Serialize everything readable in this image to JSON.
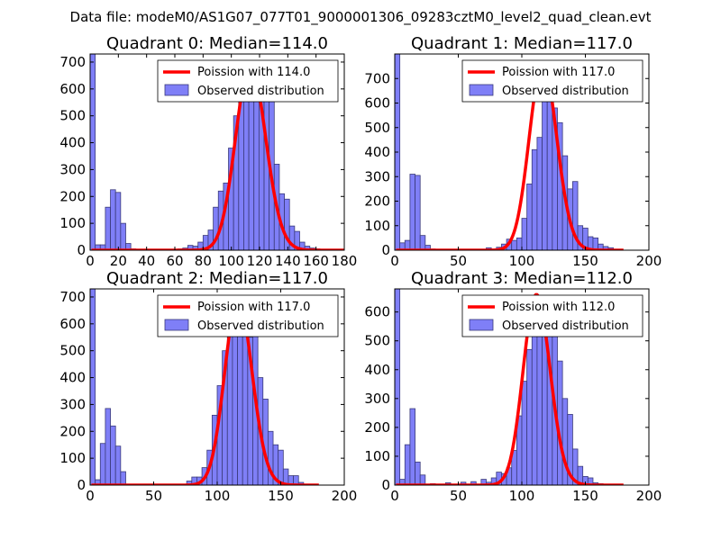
{
  "figure": {
    "suptitle": "Data file: modeM0/AS1G07_077T01_9000001306_09283cztM0_level2_quad_clean.evt"
  },
  "colors": {
    "bar_fill": "#7f7ff7",
    "bar_edge": "#3a3a7a",
    "curve": "#ff0000"
  },
  "chart_data": [
    {
      "type": "bar",
      "title": "Quadrant 0: Median=114.0",
      "xlim": [
        0,
        180
      ],
      "ylim": [
        0,
        730
      ],
      "xticks": [
        0,
        20,
        40,
        60,
        80,
        100,
        120,
        140,
        160,
        180
      ],
      "yticks": [
        0,
        100,
        200,
        300,
        400,
        500,
        600,
        700
      ],
      "bin_width": 3.6,
      "bins": [
        [
          0,
          730
        ],
        [
          3.6,
          20
        ],
        [
          7.2,
          20
        ],
        [
          10.8,
          160
        ],
        [
          14.4,
          225
        ],
        [
          18,
          215
        ],
        [
          21.6,
          100
        ],
        [
          25.2,
          25
        ],
        [
          28.8,
          5
        ],
        [
          62,
          5
        ],
        [
          65.6,
          8
        ],
        [
          69.2,
          18
        ],
        [
          72.8,
          15
        ],
        [
          76.4,
          30
        ],
        [
          80,
          55
        ],
        [
          83.6,
          75
        ],
        [
          87.2,
          160
        ],
        [
          90.8,
          220
        ],
        [
          94.4,
          250
        ],
        [
          98,
          380
        ],
        [
          101.6,
          500
        ],
        [
          105.2,
          640
        ],
        [
          108.8,
          560
        ],
        [
          112.4,
          560
        ],
        [
          116,
          690
        ],
        [
          119.6,
          595
        ],
        [
          123.2,
          595
        ],
        [
          126.8,
          560
        ],
        [
          130.4,
          320
        ],
        [
          134,
          210
        ],
        [
          137.6,
          190
        ],
        [
          141.2,
          90
        ],
        [
          144.8,
          70
        ],
        [
          148.4,
          30
        ],
        [
          152,
          15
        ],
        [
          155.6,
          8
        ],
        [
          159.2,
          5
        ]
      ],
      "series": [
        {
          "name": "Poission with 114.0",
          "kind": "line",
          "mu": 114.0,
          "peak": 690
        },
        {
          "name": "Observed distribution",
          "kind": "histogram"
        }
      ],
      "legend": {
        "location": "top-right",
        "entries": [
          "Poission with 114.0",
          "Observed distribution"
        ]
      }
    },
    {
      "type": "bar",
      "title": "Quadrant 1: Median=117.0",
      "xlim": [
        0,
        200
      ],
      "ylim": [
        0,
        800
      ],
      "xticks": [
        0,
        50,
        100,
        150,
        200
      ],
      "yticks": [
        0,
        100,
        200,
        300,
        400,
        500,
        600,
        700
      ],
      "bin_width": 4,
      "bins": [
        [
          0,
          800
        ],
        [
          4,
          30
        ],
        [
          8,
          40
        ],
        [
          12,
          310
        ],
        [
          16,
          305
        ],
        [
          20,
          60
        ],
        [
          24,
          20
        ],
        [
          28,
          5
        ],
        [
          72,
          10
        ],
        [
          80,
          12
        ],
        [
          84,
          25
        ],
        [
          88,
          45
        ],
        [
          92,
          40
        ],
        [
          96,
          50
        ],
        [
          100,
          130
        ],
        [
          104,
          270
        ],
        [
          108,
          410
        ],
        [
          112,
          460
        ],
        [
          116,
          620
        ],
        [
          120,
          730
        ],
        [
          124,
          580
        ],
        [
          128,
          520
        ],
        [
          132,
          385
        ],
        [
          136,
          250
        ],
        [
          140,
          280
        ],
        [
          144,
          100
        ],
        [
          148,
          90
        ],
        [
          152,
          55
        ],
        [
          156,
          50
        ],
        [
          160,
          25
        ],
        [
          164,
          15
        ],
        [
          168,
          10
        ]
      ],
      "series": [
        {
          "name": "Poission with 117.0",
          "kind": "line",
          "mu": 117.0,
          "peak": 760
        },
        {
          "name": "Observed distribution",
          "kind": "histogram"
        }
      ],
      "legend": {
        "location": "top-right",
        "entries": [
          "Poission with 117.0",
          "Observed distribution"
        ]
      }
    },
    {
      "type": "bar",
      "title": "Quadrant 2: Median=117.0",
      "xlim": [
        0,
        200
      ],
      "ylim": [
        0,
        730
      ],
      "xticks": [
        0,
        50,
        100,
        150,
        200
      ],
      "yticks": [
        0,
        100,
        200,
        300,
        400,
        500,
        600,
        700
      ],
      "bin_width": 4,
      "bins": [
        [
          0,
          730
        ],
        [
          4,
          20
        ],
        [
          8,
          155
        ],
        [
          12,
          285
        ],
        [
          16,
          220
        ],
        [
          20,
          145
        ],
        [
          24,
          50
        ],
        [
          76,
          15
        ],
        [
          80,
          30
        ],
        [
          84,
          30
        ],
        [
          88,
          65
        ],
        [
          92,
          130
        ],
        [
          96,
          260
        ],
        [
          100,
          370
        ],
        [
          104,
          500
        ],
        [
          108,
          600
        ],
        [
          112,
          690
        ],
        [
          116,
          670
        ],
        [
          120,
          690
        ],
        [
          124,
          550
        ],
        [
          128,
          600
        ],
        [
          132,
          400
        ],
        [
          136,
          320
        ],
        [
          140,
          200
        ],
        [
          144,
          150
        ],
        [
          148,
          130
        ],
        [
          152,
          60
        ],
        [
          156,
          35
        ],
        [
          160,
          35
        ],
        [
          164,
          10
        ]
      ],
      "series": [
        {
          "name": "Poission with 117.0",
          "kind": "line",
          "mu": 117.0,
          "peak": 690
        },
        {
          "name": "Observed distribution",
          "kind": "histogram"
        }
      ],
      "legend": {
        "location": "top-right",
        "entries": [
          "Poission with 117.0",
          "Observed distribution"
        ]
      }
    },
    {
      "type": "bar",
      "title": "Quadrant 3: Median=112.0",
      "xlim": [
        0,
        200
      ],
      "ylim": [
        0,
        680
      ],
      "xticks": [
        0,
        50,
        100,
        150,
        200
      ],
      "yticks": [
        0,
        100,
        200,
        300,
        400,
        500,
        600
      ],
      "bin_width": 4,
      "bins": [
        [
          0,
          700
        ],
        [
          4,
          20
        ],
        [
          8,
          140
        ],
        [
          12,
          265
        ],
        [
          16,
          80
        ],
        [
          20,
          35
        ],
        [
          28,
          5
        ],
        [
          40,
          8
        ],
        [
          52,
          10
        ],
        [
          60,
          12
        ],
        [
          68,
          20
        ],
        [
          72,
          10
        ],
        [
          76,
          25
        ],
        [
          80,
          45
        ],
        [
          84,
          40
        ],
        [
          88,
          60
        ],
        [
          92,
          120
        ],
        [
          96,
          240
        ],
        [
          100,
          360
        ],
        [
          104,
          470
        ],
        [
          108,
          530
        ],
        [
          112,
          610
        ],
        [
          116,
          600
        ],
        [
          120,
          540
        ],
        [
          124,
          530
        ],
        [
          128,
          430
        ],
        [
          132,
          300
        ],
        [
          136,
          245
        ],
        [
          140,
          125
        ],
        [
          144,
          65
        ],
        [
          148,
          30
        ],
        [
          152,
          25
        ],
        [
          156,
          8
        ],
        [
          160,
          5
        ]
      ],
      "series": [
        {
          "name": "Poission with 112.0",
          "kind": "line",
          "mu": 112.0,
          "peak": 660
        },
        {
          "name": "Observed distribution",
          "kind": "histogram"
        }
      ],
      "legend": {
        "location": "top-right",
        "entries": [
          "Poission with 112.0",
          "Observed distribution"
        ]
      }
    }
  ]
}
